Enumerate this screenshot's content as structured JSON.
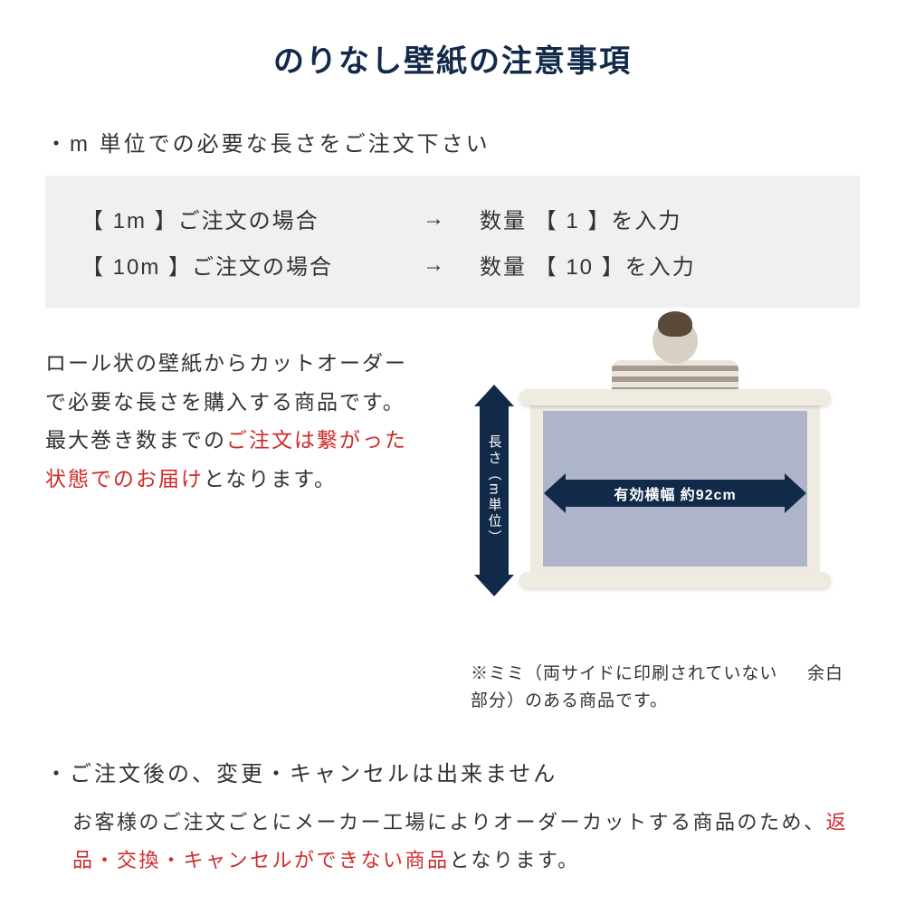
{
  "colors": {
    "title": "#122a4a",
    "text": "#333333",
    "highlight": "#d02b2b",
    "box_bg": "#f1f0f0",
    "arrow": "#122a4a",
    "wallpaper_fill": "#aeb4ca",
    "roll_edge": "#f0ebe0"
  },
  "title": "のりなし壁紙の注意事項",
  "section1": {
    "bullet": "・m 単位での必要な長さをご注文下さい",
    "rows": [
      {
        "left": "【 1m 】ご注文の場合",
        "arrow": "→",
        "right": "数量 【 1 】を入力"
      },
      {
        "left": "【 10m 】ご注文の場合",
        "arrow": "→",
        "right": "数量 【 10 】を入力"
      }
    ]
  },
  "description": {
    "line1": "ロール状の壁紙からカットオーダーで必要な長さを購入する商品です。最大巻き数までの",
    "highlight": "ご注文は繋がった状態でのお届け",
    "line2": "となります。"
  },
  "diagram": {
    "v_label": "長さ（m単位）",
    "h_label": "有効横幅 約92cm",
    "width_cm": 92
  },
  "mimi_note": "※ミミ（両サイドに印刷されていない\n　 余白部分）のある商品です。",
  "section2": {
    "bullet": "・ご注文後の、変更・キャンセルは出来ません",
    "body_pre": "お客様のご注文ごとにメーカー工場によりオーダーカットする商品のため、",
    "body_highlight": "返品・交換・キャンセルができない商品",
    "body_post": "となります。"
  }
}
